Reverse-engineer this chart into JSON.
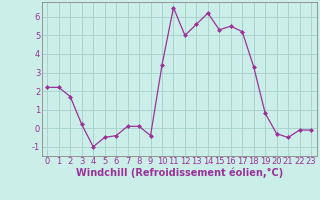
{
  "x": [
    0,
    1,
    2,
    3,
    4,
    5,
    6,
    7,
    8,
    9,
    10,
    11,
    12,
    13,
    14,
    15,
    16,
    17,
    18,
    19,
    20,
    21,
    22,
    23
  ],
  "y": [
    2.2,
    2.2,
    1.7,
    0.2,
    -1.0,
    -0.5,
    -0.4,
    0.1,
    0.1,
    -0.4,
    3.4,
    6.5,
    5.0,
    5.6,
    6.2,
    5.3,
    5.5,
    5.2,
    3.3,
    0.8,
    -0.3,
    -0.5,
    -0.1,
    -0.1
  ],
  "line_color": "#993399",
  "marker": "D",
  "marker_size": 2.0,
  "bg_color": "#cceee8",
  "grid_color": "#aad4ce",
  "xlabel": "Windchill (Refroidissement éolien,°C)",
  "xlabel_color": "#993399",
  "ylabel_ticks": [
    -1,
    0,
    1,
    2,
    3,
    4,
    5,
    6
  ],
  "xtick_labels": [
    "0",
    "1",
    "2",
    "3",
    "4",
    "5",
    "6",
    "7",
    "8",
    "9",
    "10",
    "11",
    "12",
    "13",
    "14",
    "15",
    "16",
    "17",
    "18",
    "19",
    "20",
    "21",
    "22",
    "23"
  ],
  "xlim": [
    -0.5,
    23.5
  ],
  "ylim": [
    -1.5,
    6.8
  ],
  "tick_color": "#993399",
  "tick_fontsize": 6.0,
  "xlabel_fontsize": 7.0,
  "spine_color": "#888888",
  "linewidth": 0.9
}
